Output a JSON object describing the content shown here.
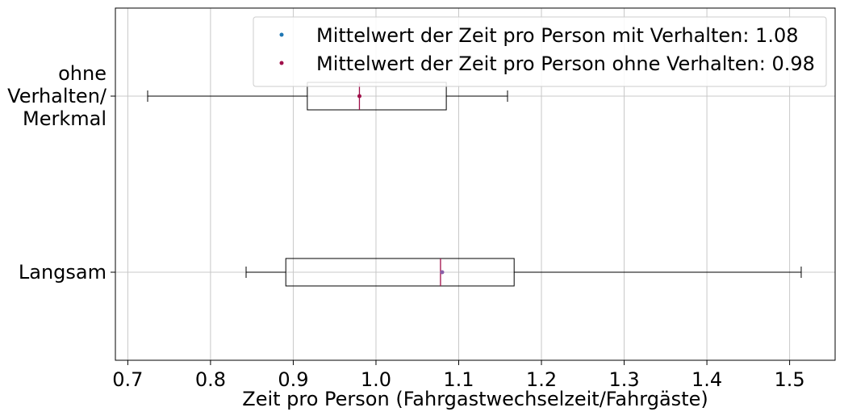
{
  "chart_data": {
    "type": "boxplot",
    "orientation": "horizontal",
    "xlabel": "Zeit pro Person (Fahrgastwechselzeit/Fahrgäste)",
    "xlim": [
      0.685,
      1.555
    ],
    "x_ticks": [
      0.7,
      0.8,
      0.9,
      1.0,
      1.1,
      1.2,
      1.3,
      1.4,
      1.5
    ],
    "x_tick_labels": [
      "0.7",
      "0.8",
      "0.9",
      "1.0",
      "1.1",
      "1.2",
      "1.3",
      "1.4",
      "1.5"
    ],
    "grid": true,
    "categories": [
      {
        "label_lines": [
          "Langsam"
        ]
      },
      {
        "label_lines": [
          "ohne",
          "Verhalten/",
          "Merkmal"
        ]
      }
    ],
    "series": [
      {
        "whisker_low": 0.843,
        "q1": 0.891,
        "median": 1.078,
        "q3": 1.167,
        "whisker_high": 1.514,
        "mean": 1.08
      },
      {
        "whisker_low": 0.724,
        "q1": 0.917,
        "median": 0.98,
        "q3": 1.085,
        "whisker_high": 1.159,
        "mean": 0.98
      }
    ],
    "legend": {
      "placement": "top-right",
      "entries": [
        {
          "label": "Mittelwert der Zeit pro Person mit Verhalten: 1.08",
          "color": "#1f77b4"
        },
        {
          "label": "Mittelwert der Zeit pro Person ohne Verhalten: 0.98",
          "color": "#a0104a"
        }
      ]
    },
    "colors": {
      "box": "#000000",
      "median": "#a0104a",
      "grid": "#c8c8c8",
      "mean_langsam": "#8a5fa8",
      "mean_ohne": "#a0104a"
    }
  }
}
